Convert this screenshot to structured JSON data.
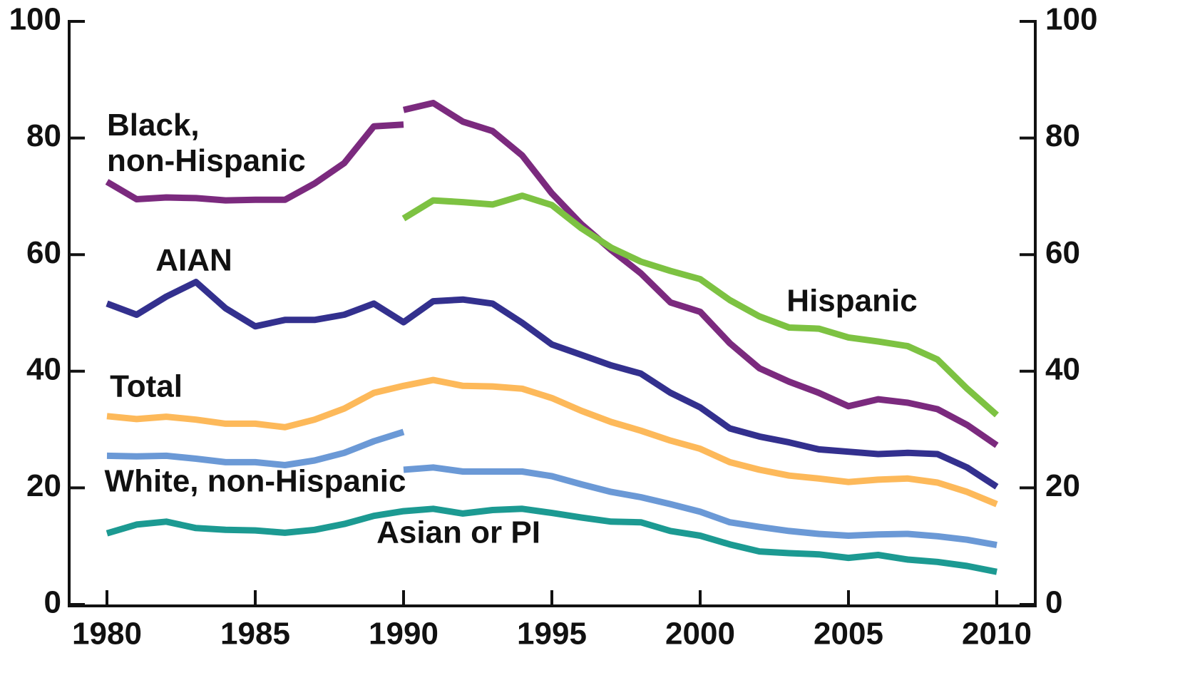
{
  "chart_data": {
    "type": "line",
    "xlim": [
      1980,
      2010
    ],
    "xticks": [
      1980,
      1985,
      1990,
      1995,
      2000,
      2005,
      2010
    ],
    "ylim": [
      0,
      100
    ],
    "yticks": [
      0,
      20,
      40,
      60,
      80,
      100
    ],
    "y2lim": [
      0,
      100
    ],
    "y2ticks": [
      0,
      20,
      40,
      60,
      80,
      100
    ],
    "series": [
      {
        "name": "Black,\nnon-Hispanic",
        "color": "#7b2a7e",
        "x": [
          1980,
          1981,
          1982,
          1983,
          1984,
          1985,
          1986,
          1987,
          1988,
          1989,
          1990,
          1990,
          1990,
          1991,
          1992,
          1993,
          1994,
          1995,
          1996,
          1997,
          1998,
          1999,
          2000,
          2001,
          2002,
          2003,
          2004,
          2005,
          2006,
          2007,
          2008,
          2009,
          2010
        ],
        "values": [
          72.5,
          69.5,
          69.8,
          69.7,
          69.3,
          69.4,
          69.4,
          72.2,
          75.7,
          82,
          82.3,
          null,
          84.8,
          86,
          82.8,
          81.2,
          77,
          70.5,
          65.2,
          60.8,
          56.8,
          51.8,
          50.2,
          44.8,
          40.5,
          38.2,
          36.3,
          34,
          35.2,
          34.6,
          33.5,
          30.8,
          27.3
        ]
      },
      {
        "name": "Hispanic",
        "color": "#7dc242",
        "x": [
          1990,
          1991,
          1992,
          1993,
          1994,
          1995,
          1996,
          1997,
          1998,
          1999,
          2000,
          2001,
          2002,
          2003,
          2004,
          2005,
          2006,
          2007,
          2008,
          2009,
          2010
        ],
        "values": [
          66.2,
          69.3,
          69,
          68.6,
          70.1,
          68.5,
          64.5,
          61.2,
          58.8,
          57.2,
          55.8,
          52.2,
          49.4,
          47.5,
          47.3,
          45.8,
          45.1,
          44.3,
          42,
          37,
          32.5
        ]
      },
      {
        "name": "AIAN",
        "color": "#33308e",
        "x": [
          1980,
          1981,
          1982,
          1983,
          1984,
          1985,
          1986,
          1987,
          1988,
          1989,
          1990,
          1991,
          1992,
          1993,
          1994,
          1995,
          1996,
          1997,
          1998,
          1999,
          2000,
          2001,
          2002,
          2003,
          2004,
          2005,
          2006,
          2007,
          2008,
          2009,
          2010
        ],
        "values": [
          51.6,
          49.7,
          52.8,
          55.3,
          50.8,
          47.7,
          48.8,
          48.8,
          49.7,
          51.6,
          48.4,
          52,
          52.3,
          51.6,
          48.3,
          44.6,
          42.8,
          41,
          39.6,
          36.3,
          33.8,
          30.2,
          28.8,
          27.8,
          26.6,
          26.2,
          25.8,
          26,
          25.8,
          23.5,
          20.2
        ]
      },
      {
        "name": "Total",
        "color": "#fdb95a",
        "x": [
          1980,
          1981,
          1982,
          1983,
          1984,
          1985,
          1986,
          1987,
          1988,
          1989,
          1990,
          1991,
          1992,
          1993,
          1994,
          1995,
          1996,
          1997,
          1998,
          1999,
          2000,
          2001,
          2002,
          2003,
          2004,
          2005,
          2006,
          2007,
          2008,
          2009,
          2010
        ],
        "values": [
          32.3,
          31.8,
          32.2,
          31.7,
          31,
          31,
          30.4,
          31.7,
          33.6,
          36.3,
          37.5,
          38.5,
          37.5,
          37.4,
          37,
          35.4,
          33.2,
          31.3,
          29.8,
          28.1,
          26.7,
          24.4,
          23.1,
          22.1,
          21.6,
          21,
          21.4,
          21.6,
          20.9,
          19.3,
          17.2
        ]
      },
      {
        "name": "White, non-Hispanic",
        "color": "#6b99d6",
        "x": [
          1980,
          1981,
          1982,
          1983,
          1984,
          1985,
          1986,
          1987,
          1988,
          1989,
          1990,
          1990,
          1990,
          1991,
          1992,
          1993,
          1994,
          1995,
          1996,
          1997,
          1998,
          1999,
          2000,
          2001,
          2002,
          2003,
          2004,
          2005,
          2006,
          2007,
          2008,
          2009,
          2010
        ],
        "values": [
          25.5,
          25.4,
          25.5,
          25,
          24.4,
          24.4,
          23.9,
          24.7,
          26,
          28,
          29.6,
          null,
          23.1,
          23.5,
          22.8,
          22.8,
          22.8,
          22,
          20.6,
          19.3,
          18.4,
          17.2,
          15.9,
          14.1,
          13.3,
          12.6,
          12.1,
          11.8,
          12,
          12.1,
          11.7,
          11.1,
          10.2
        ]
      },
      {
        "name": "Asian or PI",
        "color": "#1c9a92",
        "x": [
          1980,
          1981,
          1982,
          1983,
          1984,
          1985,
          1986,
          1987,
          1988,
          1989,
          1990,
          1991,
          1992,
          1993,
          1994,
          1995,
          1996,
          1997,
          1998,
          1999,
          2000,
          2001,
          2002,
          2003,
          2004,
          2005,
          2006,
          2007,
          2008,
          2009,
          2010
        ],
        "values": [
          12.2,
          13.7,
          14.2,
          13.1,
          12.8,
          12.7,
          12.3,
          12.8,
          13.8,
          15.2,
          16,
          16.4,
          15.6,
          16.2,
          16.4,
          15.7,
          14.9,
          14.2,
          14.1,
          12.6,
          11.8,
          10.3,
          9.1,
          8.8,
          8.6,
          8,
          8.5,
          7.7,
          7.3,
          6.6,
          5.6
        ]
      }
    ]
  }
}
